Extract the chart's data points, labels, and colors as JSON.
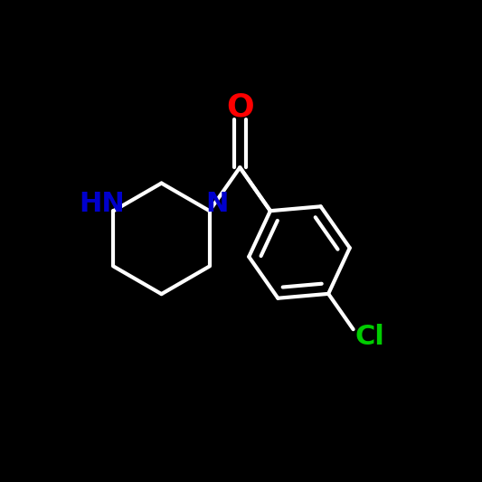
{
  "background_color": "#000000",
  "bond_color": "#ffffff",
  "atom_colors": {
    "O": "#ff0000",
    "N": "#0000cd",
    "HN": "#0000cd",
    "Cl": "#00cc00",
    "C": "#ffffff"
  },
  "bond_width": 3.0,
  "font_size": 22,
  "fig_size": [
    5.33,
    5.33
  ],
  "dpi": 100,
  "xlim": [
    0,
    10
  ],
  "ylim": [
    0,
    10
  ]
}
